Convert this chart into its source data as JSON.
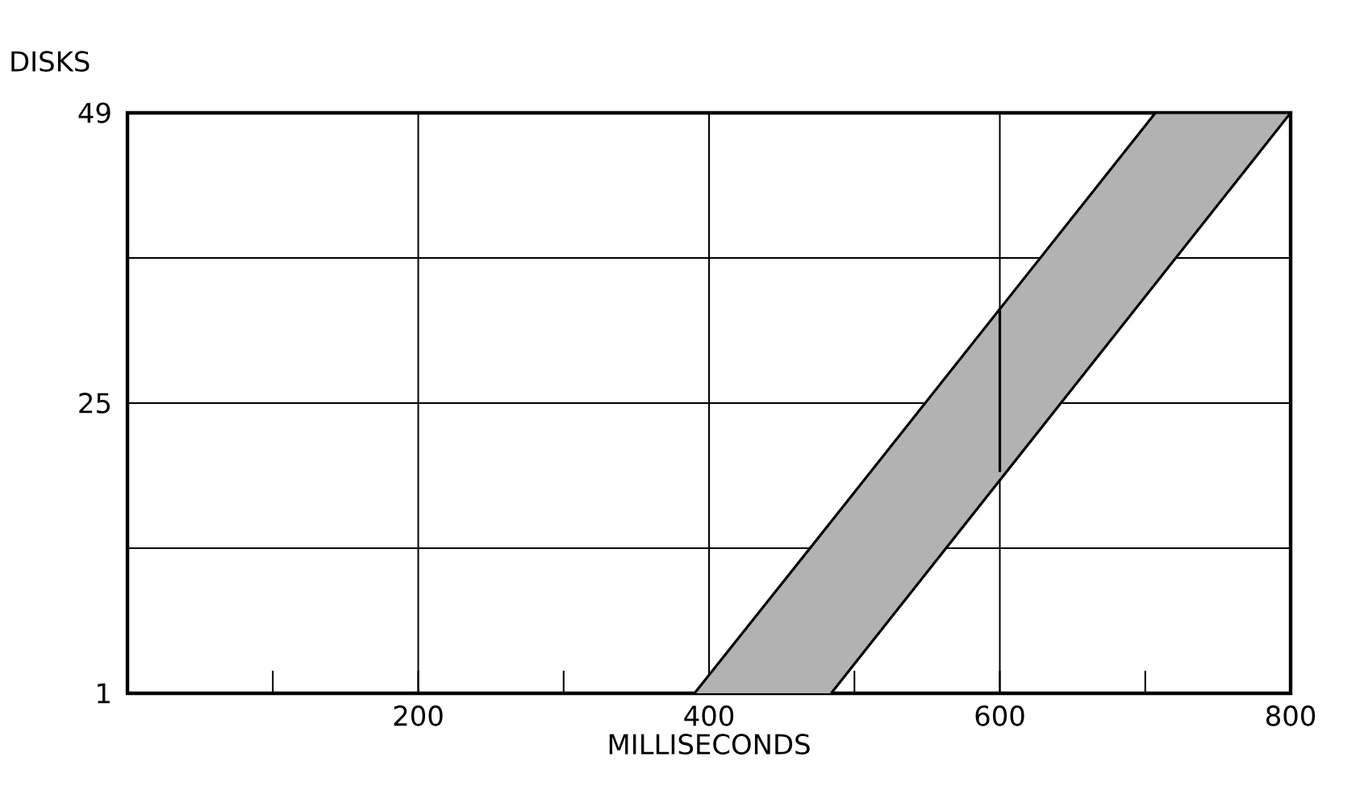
{
  "chart_data": {
    "type": "line",
    "xlabel": "MILLISECONDS",
    "ylabel": "DISKS",
    "series": [
      {
        "color": "#000000",
        "x": [
          390,
          484,
          707,
          800
        ],
        "values": [
          1,
          15.2,
          49,
          49
        ],
        "lower": [
          1,
          1,
          34.9,
          49
        ],
        "upper": [
          1,
          15.2,
          49,
          49
        ]
      },
      {
        "color": "#000000",
        "x": [
          484,
          800
        ],
        "values": [
          1,
          49
        ]
      },
      {
        "color": "#000000",
        "x": [
          600,
          600
        ],
        "values": [
          19.3,
          32.7
        ]
      }
    ],
    "xlim": [
      0,
      800
    ],
    "ylim": [
      1,
      49
    ],
    "xticks": [
      {
        "value": 100,
        "label": null
      },
      200,
      {
        "value": 300,
        "label": null
      },
      400,
      {
        "value": 500,
        "label": null
      },
      600,
      {
        "value": 700,
        "label": null
      },
      800
    ],
    "yticks": [
      1,
      {
        "value": 13,
        "label": null
      },
      25,
      {
        "value": 37,
        "label": null
      },
      49
    ],
    "grid": true,
    "marker": "none",
    "line_style": "solid"
  }
}
